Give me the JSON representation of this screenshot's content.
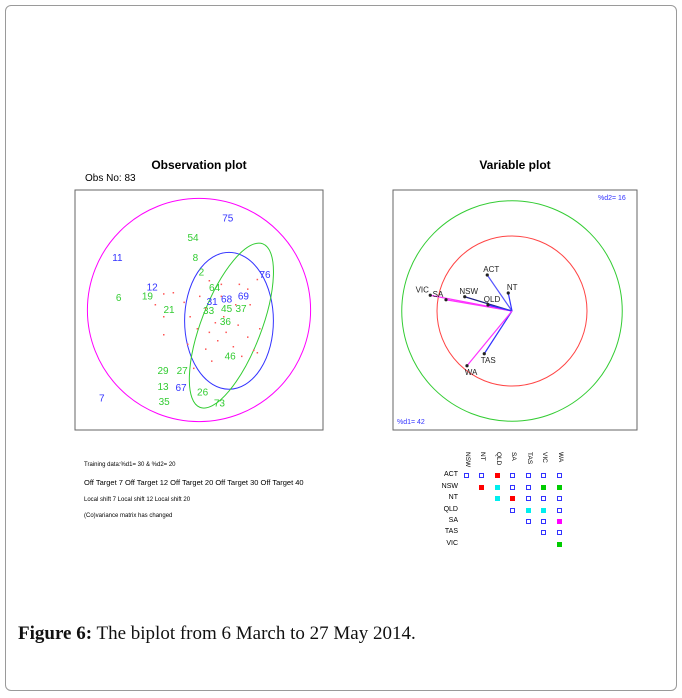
{
  "caption": {
    "label": "Figure 6:",
    "text": " The biplot from 6 March to 27 May 2014."
  },
  "chart_data": [
    {
      "type": "scatter",
      "title": "Observation plot",
      "subtitle": "Obs No: 83",
      "labels": [
        {
          "t": "75",
          "x": 0.24,
          "y": 0.77,
          "c": "#3333ff"
        },
        {
          "t": "54",
          "x": -0.05,
          "y": 0.61,
          "c": "#33cc33"
        },
        {
          "t": "11",
          "x": -0.68,
          "y": 0.44,
          "c": "#3333ff"
        },
        {
          "t": "8",
          "x": -0.03,
          "y": 0.44,
          "c": "#33cc33"
        },
        {
          "t": "2",
          "x": 0.02,
          "y": 0.32,
          "c": "#33cc33"
        },
        {
          "t": "76",
          "x": 0.55,
          "y": 0.3,
          "c": "#3333ff"
        },
        {
          "t": "64",
          "x": 0.13,
          "y": 0.19,
          "c": "#33cc33"
        },
        {
          "t": "68",
          "x": 0.23,
          "y": 0.17,
          "c": "#3333ff"
        },
        {
          "t": "69",
          "x": 0.37,
          "y": 0.12,
          "c": "#3333ff"
        },
        {
          "t": "6",
          "x": -0.67,
          "y": 0.11,
          "c": "#33cc33"
        },
        {
          "t": "19",
          "x": -0.43,
          "y": 0.12,
          "c": "#33cc33"
        },
        {
          "t": "12",
          "x": -0.39,
          "y": 0.12,
          "c": "#3333ff"
        },
        {
          "t": "45",
          "x": 0.23,
          "y": 0.09,
          "c": "#33cc33"
        },
        {
          "t": "37",
          "x": 0.35,
          "y": 0.09,
          "c": "#33cc33"
        },
        {
          "t": "36",
          "x": 0.22,
          "y": 0.06,
          "c": "#33cc33"
        },
        {
          "t": "21",
          "x": -0.25,
          "y": 0.01,
          "c": "#33cc33"
        },
        {
          "t": "33",
          "x": 0.08,
          "y": 0.0,
          "c": "#33cc33"
        },
        {
          "t": "31",
          "x": 0.11,
          "y": 0.0,
          "c": "#3333ff"
        },
        {
          "t": "46",
          "x": 0.26,
          "y": -0.38,
          "c": "#33cc33"
        },
        {
          "t": "27",
          "x": -0.14,
          "y": -0.5,
          "c": "#33cc33"
        },
        {
          "t": "29",
          "x": -0.3,
          "y": -0.5,
          "c": "#33cc33"
        },
        {
          "t": "13",
          "x": -0.3,
          "y": -0.56,
          "c": "#33cc33"
        },
        {
          "t": "67",
          "x": -0.15,
          "y": -0.64,
          "c": "#3333ff"
        },
        {
          "t": "7",
          "x": -0.81,
          "y": -0.73,
          "c": "#3333ff"
        },
        {
          "t": "35",
          "x": -0.29,
          "y": -0.76,
          "c": "#33cc33"
        },
        {
          "t": "26",
          "x": 0.03,
          "y": -0.68,
          "c": "#33cc33"
        },
        {
          "t": "73",
          "x": 0.17,
          "y": -0.77,
          "c": "#33cc33"
        }
      ],
      "points": [
        [
          0.08,
          0.25
        ],
        [
          0.18,
          0.22
        ],
        [
          0.33,
          0.22
        ],
        [
          0.48,
          0.26
        ],
        [
          0.4,
          0.18
        ],
        [
          -0.22,
          0.15
        ],
        [
          0.0,
          0.12
        ],
        [
          0.18,
          0.12
        ],
        [
          -0.13,
          0.07
        ],
        [
          -0.3,
          0.14
        ],
        [
          -0.37,
          0.05
        ],
        [
          0.05,
          0.02
        ],
        [
          0.3,
          0.05
        ],
        [
          0.42,
          0.05
        ],
        [
          -0.08,
          -0.05
        ],
        [
          0.13,
          -0.1
        ],
        [
          0.2,
          -0.05
        ],
        [
          0.32,
          -0.12
        ],
        [
          0.5,
          -0.15
        ],
        [
          -0.02,
          -0.15
        ],
        [
          0.08,
          -0.18
        ],
        [
          0.22,
          -0.18
        ],
        [
          0.4,
          -0.22
        ],
        [
          0.15,
          -0.25
        ],
        [
          -0.1,
          -0.28
        ],
        [
          0.05,
          -0.32
        ],
        [
          0.28,
          -0.3
        ],
        [
          0.45,
          -0.33
        ],
        [
          0.48,
          -0.35
        ],
        [
          0.35,
          -0.38
        ],
        [
          0.1,
          -0.42
        ],
        [
          -0.05,
          -0.48
        ],
        [
          -0.3,
          -0.2
        ],
        [
          -0.3,
          -0.05
        ]
      ],
      "circle": {
        "r": 0.93,
        "c": "#ff00ff"
      },
      "ellipses": [
        {
          "cx": 0.25,
          "cy": -0.09,
          "rx": 0.37,
          "ry": 0.57,
          "rot": 0,
          "c": "#3333ff"
        },
        {
          "cx": 0.27,
          "cy": -0.13,
          "rx": 0.25,
          "ry": 0.73,
          "rot": 21,
          "c": "#33cc33"
        }
      ]
    },
    {
      "type": "biplot-vectors",
      "title": "Variable plot",
      "annotations": {
        "d2": "%d2= 16",
        "d1": "%d1= 42"
      },
      "circles": [
        {
          "r": 1.0,
          "c": "#ff4444"
        },
        {
          "r": 1.47,
          "c": "#33cc33"
        }
      ],
      "vectors": [
        {
          "name": "ACT",
          "x": -0.33,
          "y": 0.48,
          "c": "#5555ff"
        },
        {
          "name": "NT",
          "x": -0.05,
          "y": 0.24,
          "c": "#3333ff"
        },
        {
          "name": "VIC",
          "x": -1.09,
          "y": 0.21,
          "c": "#ff33ff"
        },
        {
          "name": "SA",
          "x": -0.88,
          "y": 0.15,
          "c": "#ff33ff"
        },
        {
          "name": "NSW",
          "x": -0.63,
          "y": 0.19,
          "c": "#222288"
        },
        {
          "name": "QLD",
          "x": -0.32,
          "y": 0.08,
          "c": "#3333ff"
        },
        {
          "name": "TAS",
          "x": -0.37,
          "y": -0.57,
          "c": "#3333ff"
        },
        {
          "name": "WA",
          "x": -0.6,
          "y": -0.73,
          "c": "#ff33ff"
        }
      ]
    }
  ],
  "notes": {
    "training": "Training data:%d1= 30  & %d2= 20",
    "off_target": "Off Target 7 Off Target 12 Off Target 20 Off Target 30 Off Target 40",
    "local_shift": "Local shift 7 Local shift 12 Local shift 20",
    "covariance": "(Co)variance matrix has changed"
  },
  "matrix": {
    "rows": [
      "ACT",
      "NSW",
      "NT",
      "QLD",
      "SA",
      "TAS",
      "VIC"
    ],
    "cols": [
      "NSW",
      "NT",
      "QLD",
      "SA",
      "TAS",
      "VIC",
      "WA"
    ],
    "cells": [
      [
        "open",
        "open",
        "red",
        "open",
        "open",
        "open",
        "open"
      ],
      [
        null,
        "red",
        "cyan",
        "open",
        "open",
        "green",
        "green"
      ],
      [
        null,
        null,
        "cyan",
        "red",
        "open",
        "open",
        "open"
      ],
      [
        null,
        null,
        null,
        "open",
        "cyan",
        "cyan",
        "open"
      ],
      [
        null,
        null,
        null,
        null,
        "open",
        "open",
        "magenta"
      ],
      [
        null,
        null,
        null,
        null,
        null,
        "open",
        "open"
      ],
      [
        null,
        null,
        null,
        null,
        null,
        null,
        "green"
      ]
    ],
    "colors": {
      "open": "#3333ff",
      "red": "#ff0000",
      "cyan": "#00eeee",
      "green": "#00cc00",
      "magenta": "#ff00ff"
    }
  }
}
